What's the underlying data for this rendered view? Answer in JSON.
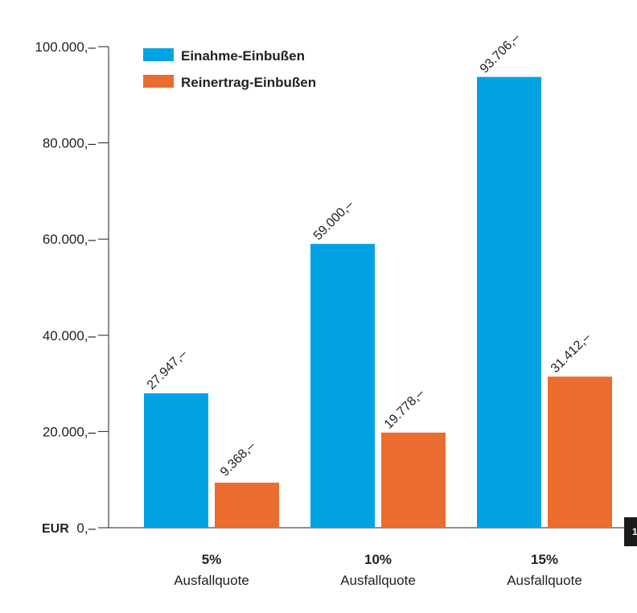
{
  "chart_data": {
    "type": "bar",
    "categories": [
      "5%",
      "10%",
      "15%"
    ],
    "category_sublabel": "Ausfallquote",
    "series": [
      {
        "name": "Einahme-Einbußen",
        "values": [
          27947,
          59000,
          93706
        ],
        "value_labels": [
          "27.947,–",
          "59.000,–",
          "93.706,–"
        ],
        "color": "#00a2e3"
      },
      {
        "name": "Reinertrag-Einbußen",
        "values": [
          9368,
          19778,
          31412
        ],
        "value_labels": [
          "9.368,–",
          "19.778,–",
          "31.412,–"
        ],
        "color": "#ea6d2f"
      }
    ],
    "ylim": [
      0,
      100000
    ],
    "yticks": [
      0,
      20000,
      40000,
      60000,
      80000,
      100000
    ],
    "ytick_labels": [
      "0,–",
      "20.000,–",
      "40.000,–",
      "60.000,–",
      "80.000,–",
      "100.000,–"
    ],
    "unit_label": "EUR",
    "grid": false,
    "legend_position": "top-left"
  },
  "page_badge": "1"
}
